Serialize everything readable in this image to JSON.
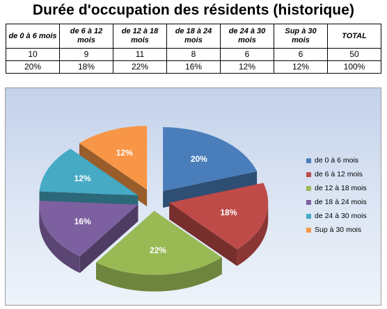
{
  "title": "Durée d'occupation des résidents (historique)",
  "table": {
    "headers": [
      "de 0 à 6 mois",
      "de 6 à 12 mois",
      "de 12 à 18 mois",
      "de 18 à 24 mois",
      "de 24 à 30 mois",
      "Sup à 30 mois",
      "TOTAL"
    ],
    "counts": [
      "10",
      "9",
      "11",
      "8",
      "6",
      "6",
      "50"
    ],
    "percents": [
      "20%",
      "18%",
      "22%",
      "16%",
      "12%",
      "12%",
      "100%"
    ]
  },
  "chart_data": {
    "type": "pie",
    "style": "3d-exploded",
    "categories": [
      "de 0 à 6 mois",
      "de 6 à 12 mois",
      "de 12 à 18 mois",
      "de 18 à 24 mois",
      "de 24 à 30 mois",
      "Sup à 30 mois"
    ],
    "values": [
      10,
      9,
      11,
      8,
      6,
      6
    ],
    "labels": [
      "20%",
      "18%",
      "22%",
      "16%",
      "12%",
      "12%"
    ],
    "colors": [
      "#4a7ebb",
      "#be4b48",
      "#98b954",
      "#7d60a0",
      "#46aac5",
      "#f79646"
    ],
    "legend_position": "right"
  }
}
